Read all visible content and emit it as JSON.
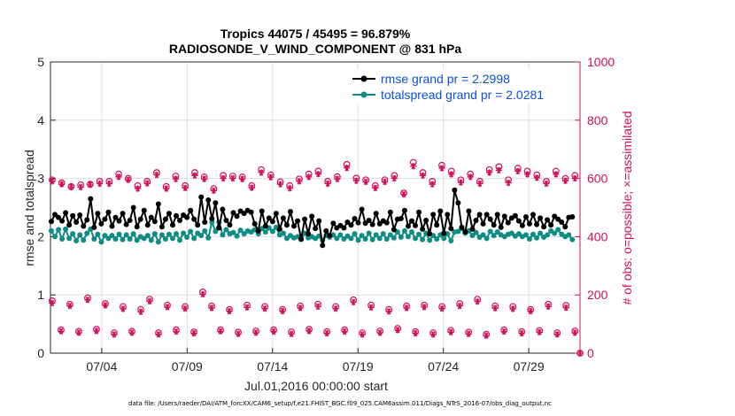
{
  "chart_data": {
    "type": "line",
    "title_line1": "Tropics 44075 / 45495 = 96.879%",
    "title_line2": "RADIOSONDE_V_WIND_COMPONENT @ 831 hPa",
    "xlabel": "Jul.01,2016 00:00:00 start",
    "ylabel_left": "rmse and totalspread",
    "ylabel_right": "# of obs: o=possible; ×=assimilated",
    "x_ticks": [
      "07/04",
      "07/09",
      "07/14",
      "07/19",
      "07/24",
      "07/29"
    ],
    "x_tick_days": [
      4,
      9,
      14,
      19,
      24,
      29
    ],
    "xlim": [
      1,
      32
    ],
    "ylim_left": [
      0,
      5
    ],
    "yticks_left": [
      "0",
      "1",
      "2",
      "3",
      "4",
      "5"
    ],
    "ylim_right": [
      0,
      1000
    ],
    "yticks_right": [
      "0",
      "200",
      "400",
      "600",
      "800",
      "1000"
    ],
    "footer": "data file: /Users/raeder/DAI/ATM_forcXX/CAM6_setup/f.e21.FHIST_BGC.f09_025.CAM6assim.011/Diags_NTrS_2016-07/obs_diag_output.nc",
    "legend": [
      {
        "label": "rmse grand pr = 2.2998",
        "color": "#000000"
      },
      {
        "label": "totalspread grand pr = 2.0281",
        "color": "#008080"
      }
    ],
    "colors": {
      "rmse": "#000000",
      "spread": "#0f8c84",
      "counts": "#d1105a",
      "legend_text": "#0b51d8"
    },
    "series_rmse": [
      2.26,
      2.38,
      2.33,
      2.27,
      2.41,
      2.2,
      2.36,
      2.25,
      2.37,
      2.18,
      2.29,
      2.65,
      2.16,
      2.4,
      2.22,
      2.3,
      2.42,
      2.18,
      2.33,
      2.27,
      2.4,
      2.21,
      2.28,
      2.5,
      2.17,
      2.3,
      2.45,
      2.2,
      2.33,
      2.26,
      2.56,
      2.17,
      2.3,
      2.4,
      2.2,
      2.36,
      2.28,
      2.37,
      2.33,
      2.45,
      2.3,
      2.2,
      2.68,
      2.25,
      2.63,
      2.31,
      2.58,
      2.15,
      2.47,
      2.28,
      2.2,
      2.41,
      2.35,
      2.44,
      2.4,
      2.45,
      2.42,
      2.22,
      2.1,
      2.44,
      2.18,
      2.32,
      2.26,
      2.4,
      2.13,
      2.32,
      2.2,
      2.43,
      2.18,
      2.27,
      1.96,
      2.3,
      2.05,
      2.35,
      2.14,
      2.27,
      1.85,
      2.1,
      2.02,
      2.23,
      2.15,
      2.19,
      2.15,
      2.25,
      2.2,
      2.31,
      2.24,
      2.47,
      2.23,
      2.28,
      2.21,
      2.4,
      2.22,
      2.27,
      2.24,
      2.42,
      2.12,
      2.3,
      2.31,
      2.45,
      2.18,
      2.27,
      2.19,
      2.42,
      2.13,
      2.28,
      2.05,
      2.38,
      2.2,
      2.44,
      2.06,
      2.38,
      2.14,
      2.8,
      2.58,
      2.16,
      2.08,
      2.44,
      2.13,
      2.28,
      2.38,
      2.22,
      2.38,
      2.3,
      2.2,
      2.38,
      2.16,
      2.35,
      2.24,
      2.32,
      2.36,
      2.27,
      2.19,
      2.34,
      2.22,
      2.38,
      2.21,
      2.32,
      2.17,
      2.29,
      2.2,
      2.35,
      2.3,
      2.25,
      2.17,
      2.33,
      2.34
    ],
    "series_spread": [
      2.1,
      2.0,
      2.12,
      1.96,
      2.13,
      1.97,
      2.05,
      1.93,
      2.03,
      1.94,
      2.06,
      2.13,
      1.96,
      2.04,
      1.91,
      2.02,
      1.97,
      2.02,
      1.96,
      2.04,
      1.95,
      2.03,
      1.96,
      2.05,
      1.94,
      2.0,
      1.97,
      2.02,
      1.94,
      2.05,
      1.91,
      2.03,
      1.96,
      2.04,
      1.97,
      2.05,
      1.94,
      2.06,
      1.99,
      2.09,
      1.97,
      2.06,
      2.02,
      2.1,
      1.98,
      2.25,
      2.09,
      2.25,
      2.03,
      2.12,
      2.05,
      2.07,
      2.01,
      2.11,
      2.05,
      2.1,
      2.08,
      2.12,
      2.05,
      2.14,
      2.08,
      2.15,
      2.09,
      2.16,
      2.03,
      2.06,
      1.97,
      2.02,
      1.98,
      2.0,
      1.95,
      2.06,
      1.98,
      2.0,
      1.97,
      2.01,
      1.94,
      2.02,
      1.99,
      2.03,
      1.97,
      2.03,
      1.96,
      2.01,
      1.97,
      2.05,
      1.94,
      2.02,
      1.96,
      2.06,
      1.95,
      2.03,
      1.97,
      2.05,
      1.96,
      2.03,
      1.98,
      2.08,
      1.99,
      2.1,
      2.0,
      2.08,
      1.97,
      2.04,
      1.95,
      2.06,
      1.94,
      2.02,
      1.96,
      2.03,
      1.97,
      2.05,
      1.93,
      2.08,
      2.09,
      2.14,
      2.06,
      2.1,
      2.02,
      2.07,
      1.99,
      2.03,
      1.97,
      2.09,
      2.02,
      2.08,
      2.03,
      2.0,
      2.04,
      2.06,
      2.01,
      2.05,
      2.0,
      2.03,
      1.96,
      2.04,
      1.98,
      2.06,
      1.99,
      2.03,
      2.1,
      2.06,
      2.12,
      2.04,
      2.0,
      2.03,
      1.95
    ],
    "obs_possible_high": [
      595,
      585,
      572,
      578,
      580,
      590,
      590,
      615,
      600,
      575,
      590,
      620,
      572,
      608,
      575,
      620,
      605,
      565,
      610,
      608,
      605,
      575,
      630,
      612,
      588,
      575,
      598,
      615,
      625,
      590,
      606,
      648,
      601,
      595,
      575,
      595,
      610,
      550,
      655,
      620,
      590,
      645,
      625,
      595,
      615,
      590,
      630,
      640,
      595,
      635,
      625,
      612,
      590,
      625,
      600,
      610
    ],
    "obs_assimilated_high": [
      590,
      580,
      570,
      570,
      578,
      582,
      582,
      605,
      595,
      565,
      583,
      612,
      565,
      598,
      567,
      610,
      598,
      558,
      600,
      600,
      598,
      568,
      620,
      604,
      580,
      566,
      590,
      605,
      615,
      582,
      598,
      636,
      592,
      588,
      567,
      588,
      600,
      545,
      642,
      610,
      580,
      635,
      614,
      586,
      605,
      582,
      620,
      628,
      585,
      625,
      614,
      602,
      582,
      614,
      592,
      600
    ],
    "obs_possible_low": [
      180,
      80,
      168,
      75,
      190,
      82,
      170,
      70,
      160,
      75,
      150,
      185,
      70,
      165,
      80,
      160,
      73,
      210,
      162,
      80,
      150,
      72,
      165,
      76,
      160,
      80,
      150,
      73,
      162,
      82,
      168,
      74,
      160,
      80,
      183,
      70,
      165,
      76,
      150,
      85,
      162,
      74,
      165,
      70,
      160,
      78,
      170,
      72,
      185,
      65,
      162,
      80,
      160,
      74,
      150,
      78,
      168,
      70,
      164,
      76
    ],
    "obs_assimilated_low": [
      172,
      75,
      162,
      70,
      183,
      76,
      164,
      64,
      152,
      70,
      142,
      178,
      64,
      158,
      74,
      153,
      68,
      202,
      155,
      75,
      144,
      66,
      157,
      70,
      153,
      74,
      144,
      66,
      155,
      76,
      160,
      68,
      153,
      74,
      175,
      64,
      157,
      70,
      143,
      79,
      155,
      68,
      158,
      64,
      153,
      72,
      162,
      66,
      177,
      60,
      154,
      74,
      152,
      68,
      144,
      72,
      160,
      64,
      156,
      70
    ],
    "obs_final_zero": 0
  }
}
